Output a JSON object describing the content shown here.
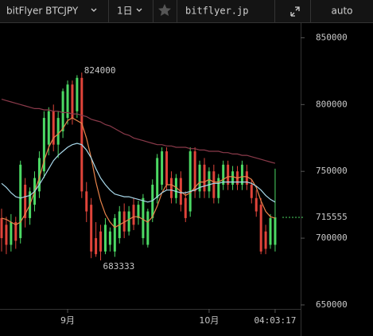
{
  "toolbar": {
    "symbol": "bitFlyer BTCJPY",
    "interval": "1日",
    "site": "bitflyer.jp",
    "mode": "auto"
  },
  "chart_data": {
    "type": "candlestick",
    "categories": [
      null,
      null,
      null,
      null,
      null,
      null,
      null,
      null,
      null,
      null,
      null,
      null,
      null,
      null,
      "9月",
      null,
      null,
      null,
      null,
      null,
      null,
      null,
      null,
      null,
      null,
      null,
      null,
      null,
      null,
      null,
      null,
      null,
      null,
      null,
      null,
      null,
      null,
      null,
      null,
      null,
      null,
      null,
      null,
      null,
      "10月",
      null,
      null,
      null,
      null,
      null,
      null,
      null,
      null,
      null,
      null,
      null,
      null,
      null,
      null
    ],
    "current_time": "04:03:17",
    "up_color": "#4cd964",
    "down_color": "#e0443a",
    "open": [
      715000,
      710000,
      695000,
      712000,
      700000,
      740000,
      715000,
      725000,
      735000,
      750000,
      770000,
      795000,
      770000,
      780000,
      790000,
      815000,
      795000,
      820000,
      735000,
      725000,
      700000,
      705000,
      690000,
      695000,
      690000,
      700000,
      720000,
      705000,
      725000,
      715000,
      700000,
      695000,
      715000,
      730000,
      740000,
      765000,
      745000,
      730000,
      745000,
      730000,
      720000,
      765000,
      735000,
      755000,
      735000,
      750000,
      730000,
      740000,
      755000,
      740000,
      750000,
      740000,
      750000,
      740000,
      730000,
      725000,
      705000,
      695000,
      695000
    ],
    "high": [
      722000,
      716000,
      718000,
      716000,
      758000,
      745000,
      738000,
      750000,
      765000,
      795000,
      798000,
      800000,
      795000,
      812000,
      818000,
      818000,
      822000,
      824000,
      742000,
      730000,
      712000,
      710000,
      715000,
      708000,
      718000,
      724000,
      726000,
      724000,
      730000,
      728000,
      733000,
      722000,
      744000,
      763000,
      768000,
      768000,
      750000,
      748000,
      750000,
      735000,
      768000,
      768000,
      758000,
      760000,
      753000,
      755000,
      748000,
      758000,
      758000,
      754000,
      754000,
      758000,
      755000,
      744000,
      736000,
      730000,
      710000,
      718000,
      752000
    ],
    "low": [
      690000,
      688000,
      690000,
      692000,
      696000,
      708000,
      710000,
      720000,
      730000,
      745000,
      762000,
      765000,
      760000,
      775000,
      785000,
      785000,
      790000,
      730000,
      712000,
      685000,
      686000,
      683333,
      688000,
      690000,
      686000,
      696000,
      700000,
      702000,
      706000,
      710000,
      695000,
      693000,
      712000,
      726000,
      736000,
      736000,
      726000,
      726000,
      720000,
      712000,
      716000,
      730000,
      730000,
      730000,
      730000,
      726000,
      726000,
      736000,
      736000,
      736000,
      736000,
      736000,
      736000,
      726000,
      716000,
      688000,
      688000,
      692000,
      690000
    ],
    "close": [
      700000,
      695000,
      712000,
      698000,
      755000,
      715000,
      735000,
      745000,
      760000,
      790000,
      795000,
      770000,
      790000,
      810000,
      815000,
      790000,
      820000,
      735000,
      720000,
      690000,
      688000,
      690000,
      710000,
      705000,
      715000,
      720000,
      705000,
      720000,
      710000,
      725000,
      730000,
      720000,
      740000,
      760000,
      765000,
      740000,
      730000,
      745000,
      725000,
      715000,
      765000,
      735000,
      755000,
      735000,
      750000,
      730000,
      745000,
      755000,
      740000,
      750000,
      740000,
      755000,
      740000,
      730000,
      720000,
      690000,
      692000,
      715000,
      715555
    ],
    "moving_averages": [
      {
        "color": "#e8834a",
        "values": [
          715000,
          714000,
          712000,
          710000,
          712000,
          718000,
          725000,
          735000,
          745000,
          758000,
          768000,
          775000,
          778000,
          782000,
          788000,
          790000,
          788000,
          786000,
          775000,
          760000,
          742000,
          728000,
          718000,
          712000,
          708000,
          710000,
          712000,
          714000,
          716000,
          716000,
          714000,
          712000,
          716000,
          724000,
          734000,
          740000,
          740000,
          738000,
          735000,
          732000,
          734000,
          738000,
          742000,
          742000,
          744000,
          742000,
          742000,
          744000,
          746000,
          746000,
          745000,
          746000,
          746000,
          744000,
          738000,
          728000,
          720000,
          716000,
          715000
        ]
      },
      {
        "color": "#a8d8ea",
        "values": [
          741000,
          738000,
          734000,
          731000,
          730000,
          731000,
          732000,
          735000,
          740000,
          746000,
          752000,
          758000,
          762000,
          765000,
          768000,
          770000,
          771000,
          770000,
          766000,
          760000,
          752000,
          745000,
          740000,
          736000,
          733000,
          732000,
          731000,
          731000,
          730000,
          729000,
          728000,
          727000,
          728000,
          731000,
          734000,
          736000,
          736000,
          735000,
          734000,
          734000,
          735000,
          736000,
          738000,
          739000,
          740000,
          741000,
          741000,
          742000,
          742000,
          742000,
          742000,
          742000,
          742000,
          741000,
          739000,
          736000,
          732000,
          729000,
          727000
        ]
      },
      {
        "color": "#8a3a4a",
        "values": [
          804000,
          803000,
          802000,
          801000,
          800000,
          799000,
          798000,
          797000,
          797000,
          796000,
          796000,
          795000,
          795000,
          794000,
          794000,
          793000,
          793000,
          792000,
          791000,
          789000,
          788000,
          787000,
          785000,
          784000,
          782000,
          780000,
          778000,
          777000,
          775000,
          774000,
          773000,
          772000,
          771000,
          770000,
          770000,
          769000,
          769000,
          768000,
          768000,
          768000,
          767000,
          767000,
          766000,
          766000,
          765000,
          765000,
          765000,
          764000,
          764000,
          763000,
          763000,
          762000,
          762000,
          761000,
          760000,
          759000,
          758000,
          757000,
          756000
        ]
      }
    ],
    "ylim": [
      647000,
      861000
    ],
    "yticks": [
      650000,
      700000,
      750000,
      800000,
      850000
    ]
  }
}
